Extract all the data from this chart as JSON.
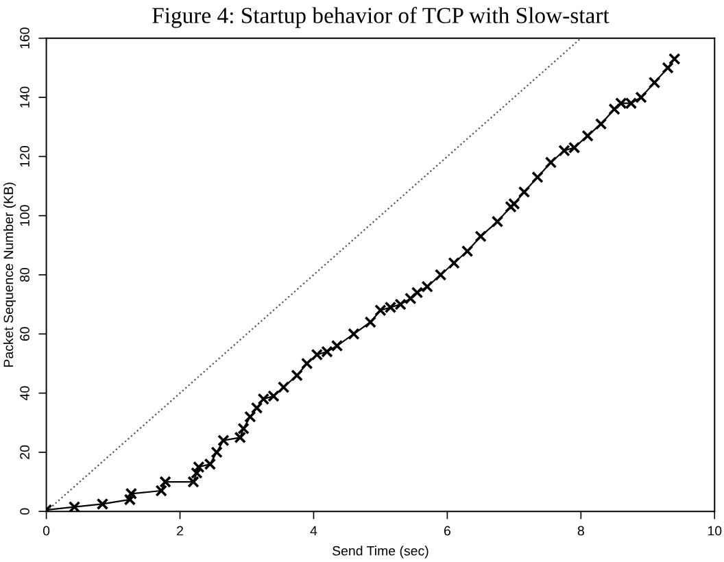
{
  "chart_data": {
    "type": "line",
    "title": "Figure 4: Startup behavior of TCP with Slow-start",
    "xlabel": "Send Time (sec)",
    "ylabel": "Packet Sequence Number (KB)",
    "xlim": [
      0,
      10
    ],
    "ylim": [
      0,
      160
    ],
    "xticks": [
      0,
      2,
      4,
      6,
      8,
      10
    ],
    "yticks": [
      0,
      20,
      40,
      60,
      80,
      100,
      120,
      140,
      160
    ],
    "grid": false,
    "series": [
      {
        "color": "#000000",
        "marker": "cross",
        "line_style": "solid",
        "x": [
          0,
          0.42,
          0.84,
          1.25,
          1.27,
          1.72,
          1.78,
          2.2,
          2.25,
          2.28,
          2.45,
          2.55,
          2.65,
          2.9,
          2.95,
          3.05,
          3.15,
          3.25,
          3.4,
          3.55,
          3.75,
          3.9,
          4.05,
          4.2,
          4.35,
          4.6,
          4.85,
          5.0,
          5.15,
          5.3,
          5.45,
          5.55,
          5.7,
          5.9,
          6.1,
          6.3,
          6.5,
          6.75,
          6.95,
          7.0,
          7.15,
          7.35,
          7.55,
          7.75,
          7.9,
          8.1,
          8.3,
          8.5,
          8.6,
          8.75,
          8.9,
          9.1,
          9.3,
          9.4
        ],
        "values": [
          0.5,
          1.5,
          2.5,
          4,
          6,
          7,
          10,
          10,
          13,
          15,
          16,
          20,
          24,
          25,
          28,
          32,
          35,
          38,
          39,
          42,
          46,
          50,
          53,
          54,
          56,
          60,
          64,
          68,
          69,
          70,
          72,
          74,
          76,
          80,
          84,
          88,
          93,
          98,
          103,
          104,
          108,
          113,
          118,
          122,
          123,
          127,
          131,
          136,
          138,
          138,
          140,
          145,
          150,
          153
        ]
      },
      {
        "color": "#555555",
        "marker": "none",
        "line_style": "dotted",
        "x": [
          0,
          8
        ],
        "values": [
          0,
          160
        ]
      }
    ]
  }
}
